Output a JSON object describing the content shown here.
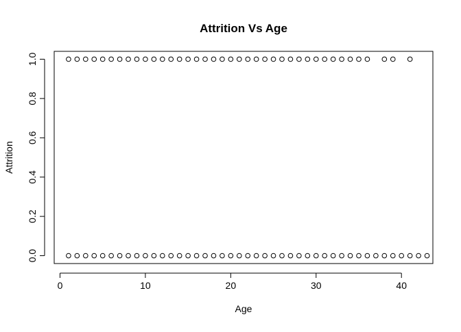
{
  "chart_data": {
    "type": "scatter",
    "title": "Attrition Vs Age",
    "xlabel": "Age",
    "ylabel": "Attrition",
    "xlim": [
      -0.68,
      43.68
    ],
    "ylim": [
      -0.04,
      1.04
    ],
    "x_ticks": [
      0,
      10,
      20,
      30,
      40
    ],
    "x_tick_labels": [
      "0",
      "10",
      "20",
      "30",
      "40"
    ],
    "y_ticks": [
      0.0,
      0.2,
      0.4,
      0.6,
      0.8,
      1.0
    ],
    "y_tick_labels": [
      "0.0",
      "0.2",
      "0.4",
      "0.6",
      "0.8",
      "1.0"
    ],
    "grid": false,
    "legend": "none",
    "marker": "open-circle",
    "marker_color": "#000000",
    "series": [
      {
        "x": [
          1,
          2,
          3,
          4,
          5,
          6,
          7,
          8,
          9,
          10,
          11,
          12,
          13,
          14,
          15,
          16,
          17,
          18,
          19,
          20,
          21,
          22,
          23,
          24,
          25,
          26,
          27,
          28,
          29,
          30,
          31,
          32,
          33,
          34,
          35,
          36,
          37,
          38,
          39,
          40,
          41,
          42,
          43
        ],
        "y": [
          0,
          0,
          0,
          0,
          0,
          0,
          0,
          0,
          0,
          0,
          0,
          0,
          0,
          0,
          0,
          0,
          0,
          0,
          0,
          0,
          0,
          0,
          0,
          0,
          0,
          0,
          0,
          0,
          0,
          0,
          0,
          0,
          0,
          0,
          0,
          0,
          0,
          0,
          0,
          0,
          0,
          0,
          0
        ]
      },
      {
        "x": [
          1,
          2,
          3,
          4,
          5,
          6,
          7,
          8,
          9,
          10,
          11,
          12,
          13,
          14,
          15,
          16,
          17,
          18,
          19,
          20,
          21,
          22,
          23,
          24,
          25,
          26,
          27,
          28,
          29,
          30,
          31,
          32,
          33,
          34,
          35,
          36,
          38,
          39,
          41
        ],
        "y": [
          1,
          1,
          1,
          1,
          1,
          1,
          1,
          1,
          1,
          1,
          1,
          1,
          1,
          1,
          1,
          1,
          1,
          1,
          1,
          1,
          1,
          1,
          1,
          1,
          1,
          1,
          1,
          1,
          1,
          1,
          1,
          1,
          1,
          1,
          1,
          1,
          1,
          1,
          1
        ]
      }
    ]
  }
}
